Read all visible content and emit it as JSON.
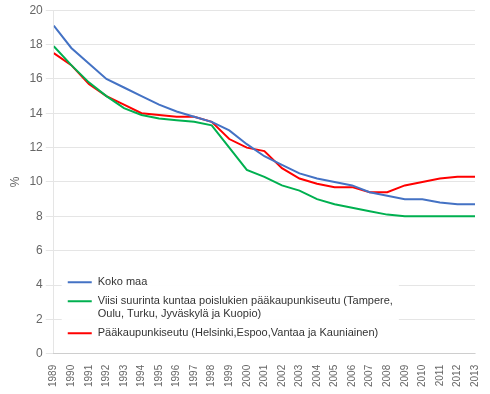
{
  "chart_data": {
    "type": "line",
    "x": [
      1989,
      1990,
      1991,
      1992,
      1993,
      1994,
      1995,
      1996,
      1997,
      1998,
      1999,
      2000,
      2001,
      2002,
      2003,
      2004,
      2005,
      2006,
      2007,
      2008,
      2009,
      2010,
      2011,
      2012,
      2013
    ],
    "series": [
      {
        "name": "Koko maa",
        "color": "#4472C4",
        "values": [
          19.1,
          17.8,
          16.9,
          16.0,
          15.5,
          15.0,
          14.5,
          14.1,
          13.8,
          13.5,
          13.0,
          12.2,
          11.5,
          11.0,
          10.5,
          10.2,
          10.0,
          9.8,
          9.4,
          9.2,
          9.0,
          9.0,
          8.8,
          8.7,
          8.7
        ]
      },
      {
        "name": "Viisi suurinta kuntaa poislukien pääkaupunkiseutu (Tampere,\nOulu, Turku, Jyväskylä ja Kuopio)",
        "color": "#00B050",
        "values": [
          17.9,
          16.8,
          15.8,
          15.0,
          14.3,
          13.9,
          13.7,
          13.6,
          13.5,
          13.3,
          12.0,
          10.7,
          10.3,
          9.8,
          9.5,
          9.0,
          8.7,
          8.5,
          8.3,
          8.1,
          8.0,
          8.0,
          8.0,
          8.0,
          8.0
        ]
      },
      {
        "name": "Pääkaupunkiseutu (Helsinki,Espoo,Vantaa ja Kauniainen)",
        "color": "#FF0000",
        "values": [
          17.5,
          16.8,
          15.7,
          15.0,
          14.5,
          14.0,
          13.9,
          13.8,
          13.8,
          13.5,
          12.5,
          12.0,
          11.8,
          10.8,
          10.2,
          9.9,
          9.7,
          9.7,
          9.4,
          9.4,
          9.8,
          10.0,
          10.2,
          10.3,
          10.3
        ]
      }
    ],
    "xlim": [
      1989,
      2013
    ],
    "xticks": [
      1989,
      1990,
      1991,
      1992,
      1993,
      1994,
      1995,
      1996,
      1997,
      1998,
      1999,
      2000,
      2001,
      2002,
      2003,
      2004,
      2005,
      2006,
      2007,
      2008,
      2009,
      2010,
      2011,
      2012,
      2013
    ],
    "ylim": [
      0,
      20
    ],
    "yticks": [
      0,
      2,
      4,
      6,
      8,
      10,
      12,
      14,
      16,
      18,
      20
    ],
    "ylabel": "%",
    "grid": true,
    "legend": "lower left"
  }
}
